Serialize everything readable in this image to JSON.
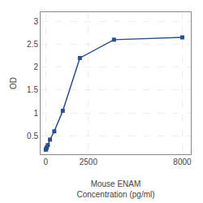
{
  "chart_data": {
    "type": "line",
    "x": [
      0,
      31.25,
      62.5,
      125,
      250,
      500,
      1000,
      2000,
      4000,
      8000
    ],
    "values": [
      0.2,
      0.22,
      0.25,
      0.3,
      0.42,
      0.6,
      1.05,
      2.2,
      2.6,
      2.65
    ],
    "xlabel": "Mouse ENAM\nConcentration (pg/ml)",
    "ylabel": "OD",
    "xlim": [
      -300,
      8500
    ],
    "xticks": [
      0,
      2500,
      8000
    ],
    "ylim": [
      0.1,
      3.2
    ],
    "yticks": [
      0.5,
      1,
      1.5,
      2,
      2.5,
      3
    ],
    "color": "#2b4f8a",
    "marker": "square",
    "grid": true
  }
}
